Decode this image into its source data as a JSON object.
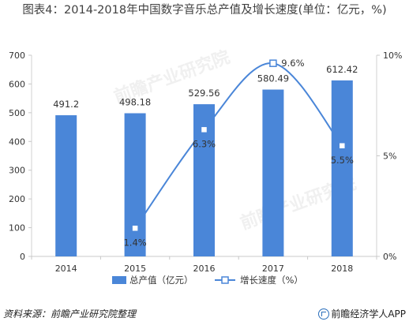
{
  "title": "图表4：2014-2018年中国数字音乐总产值及增长速度(单位：亿元，%)",
  "source": "资料来源：前瞻产业研究院整理",
  "brand": "前瞻经济学人APP",
  "watermark": "前瞻产业研究院",
  "chart_data": {
    "type": "bar+line",
    "categories": [
      "2014",
      "2015",
      "2016",
      "2017",
      "2018"
    ],
    "series": [
      {
        "name": "总产值（亿元）",
        "type": "bar",
        "axis": "left",
        "values": [
          491.2,
          498.18,
          529.56,
          580.49,
          612.42
        ],
        "labels": [
          "491.2",
          "498.18",
          "529.56",
          "580.49",
          "612.42"
        ],
        "color": "#4a86d8"
      },
      {
        "name": "增长速度（%）",
        "type": "line",
        "axis": "right",
        "values": [
          null,
          1.4,
          6.3,
          9.6,
          5.5
        ],
        "labels": [
          "",
          "1.4%",
          "6.3%",
          "9.6%",
          "5.5%"
        ],
        "color": "#4a86d8"
      }
    ],
    "y_left": {
      "min": 0,
      "max": 700,
      "ticks": [
        "0",
        "100",
        "200",
        "300",
        "400",
        "500",
        "600",
        "700"
      ]
    },
    "y_right": {
      "min": 0,
      "max": 10,
      "ticks": [
        "0%",
        "5%",
        "10%"
      ]
    },
    "legend_position": "bottom-center",
    "grid": false
  }
}
